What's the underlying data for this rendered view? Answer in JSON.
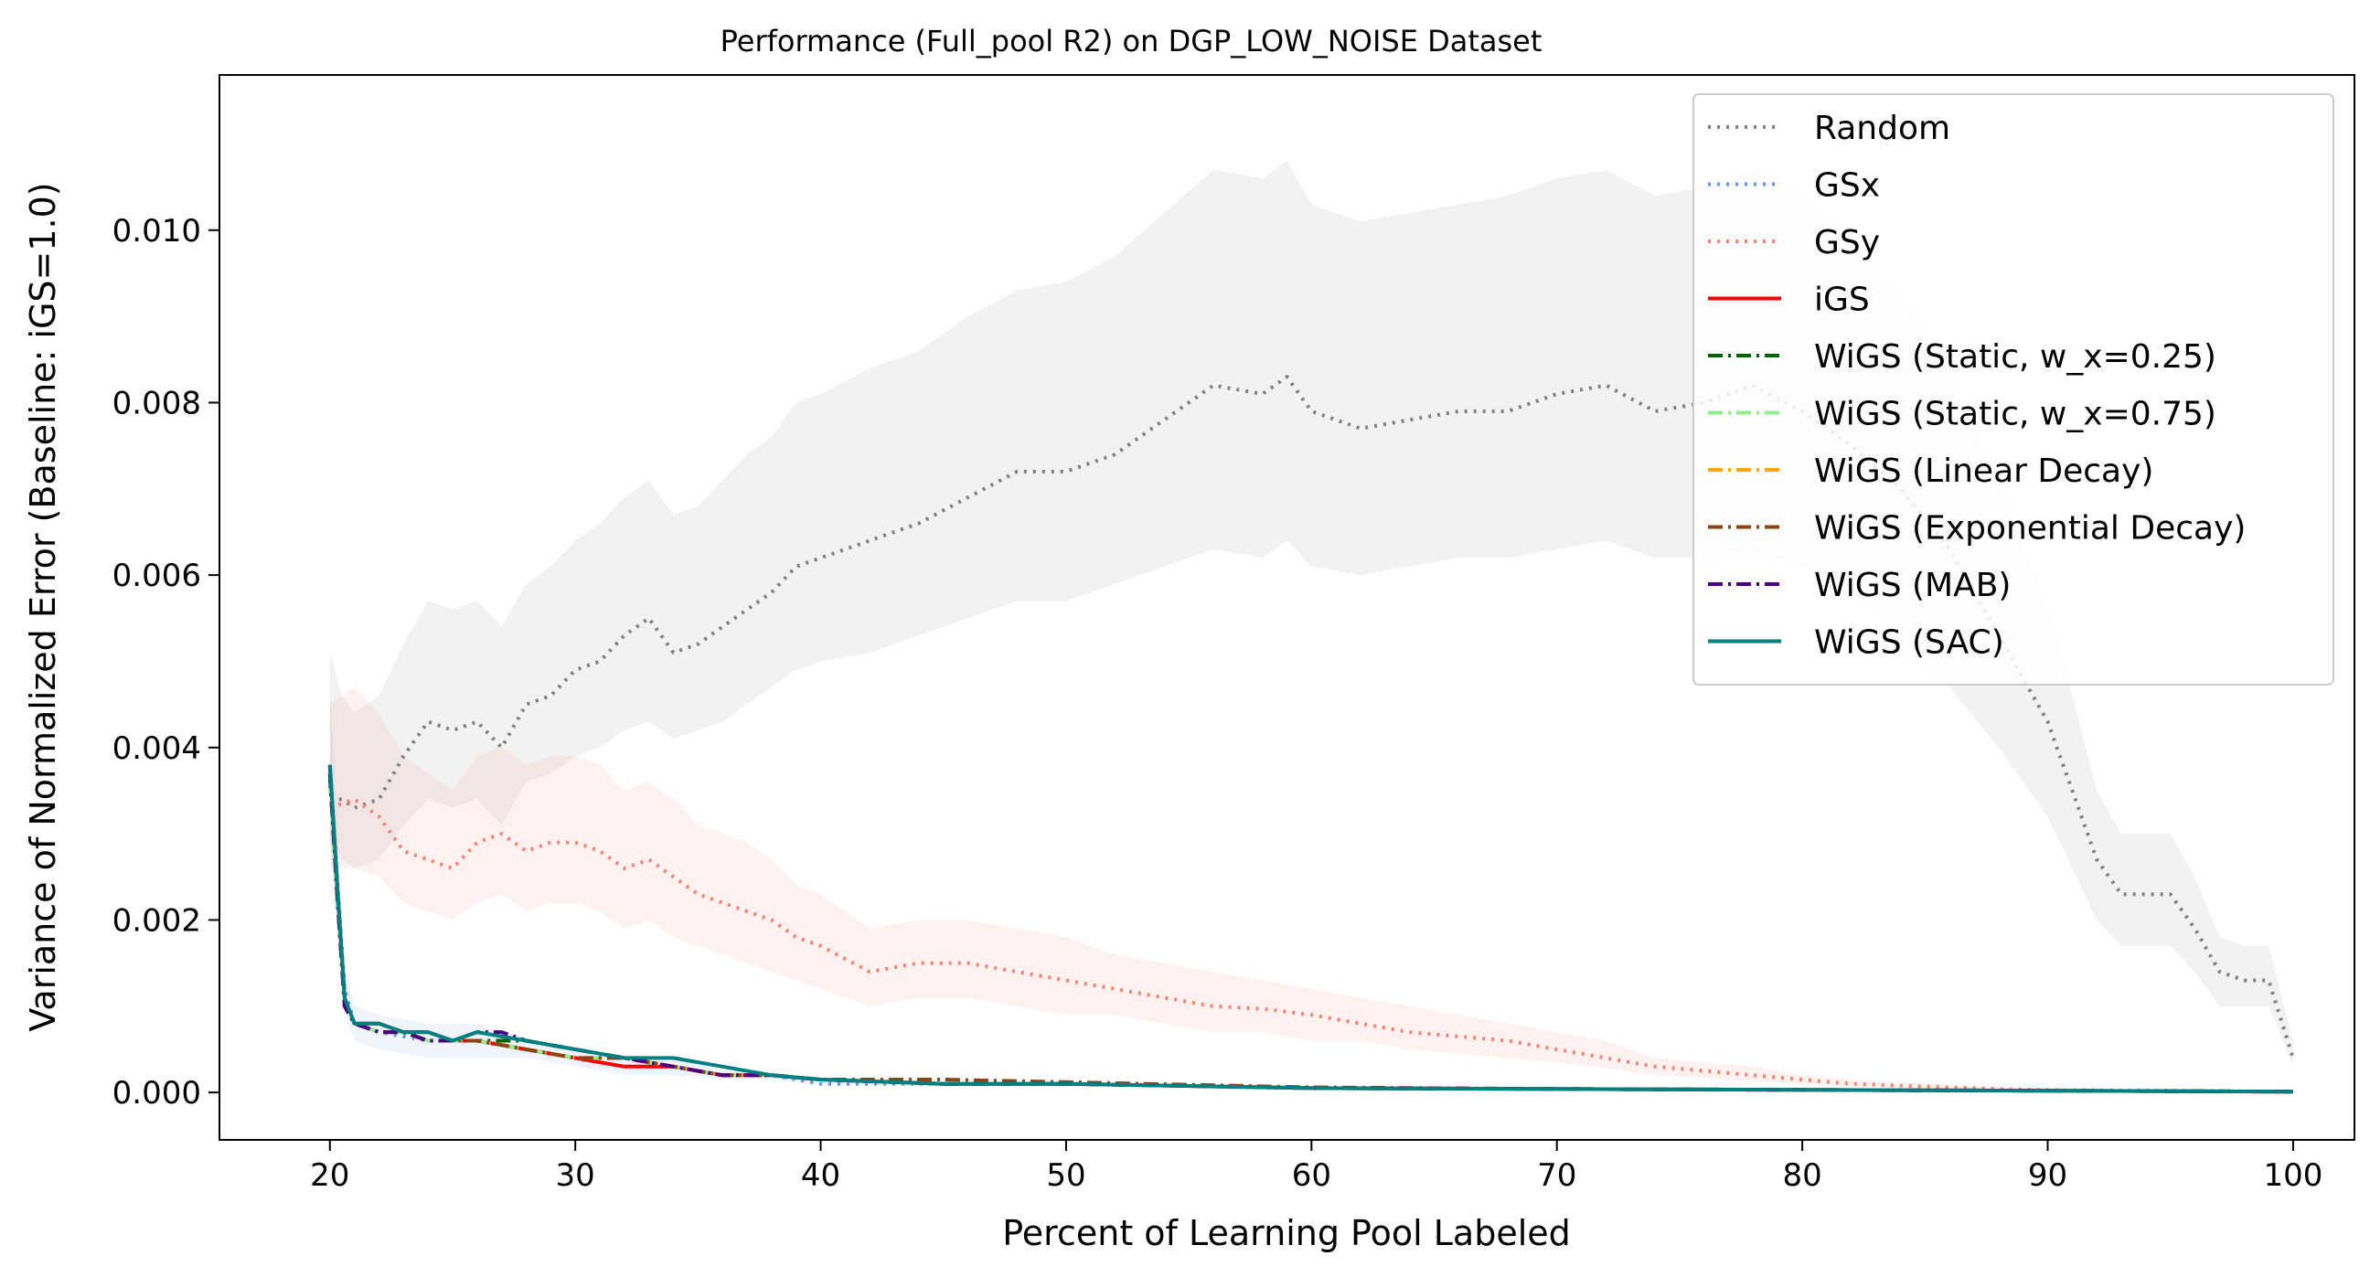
{
  "chart_data": {
    "type": "line",
    "title": "Performance (Full_pool R2) on DGP_LOW_NOISE Dataset",
    "xlabel": "Percent of Learning Pool Labeled",
    "ylabel": "Variance of Normalized Error (Baseline: iGS=1.0)",
    "xlim": [
      15.5,
      102.5
    ],
    "ylim": [
      -0.00055,
      0.0118
    ],
    "xticks": [
      20,
      30,
      40,
      50,
      60,
      70,
      80,
      90,
      100
    ],
    "xtick_labels": [
      "20",
      "30",
      "40",
      "50",
      "60",
      "70",
      "80",
      "90",
      "100"
    ],
    "yticks": [
      0.0,
      0.002,
      0.004,
      0.006,
      0.008,
      0.01
    ],
    "ytick_labels": [
      "0.000",
      "0.002",
      "0.004",
      "0.006",
      "0.008",
      "0.010"
    ],
    "grid": false,
    "legend_position": "top-right",
    "series": [
      {
        "name": "Random",
        "color": "#808080",
        "style": "dotted",
        "x": [
          20,
          20.5,
          21,
          22,
          23,
          24,
          25,
          26,
          27,
          28,
          29,
          30,
          31,
          32,
          33,
          34,
          35,
          36,
          37,
          38,
          39,
          40,
          42,
          44,
          46,
          48,
          50,
          52,
          54,
          56,
          58,
          59,
          60,
          62,
          64,
          66,
          68,
          70,
          72,
          74,
          76,
          78,
          80,
          82,
          84,
          86,
          88,
          90,
          91,
          92,
          93,
          94,
          95,
          96,
          97,
          98,
          99,
          100
        ],
        "y": [
          0.0034,
          0.0034,
          0.0033,
          0.0034,
          0.0039,
          0.0043,
          0.0042,
          0.0043,
          0.004,
          0.0045,
          0.0046,
          0.0049,
          0.005,
          0.0053,
          0.0055,
          0.0051,
          0.0052,
          0.0054,
          0.0056,
          0.0058,
          0.0061,
          0.0062,
          0.0064,
          0.0066,
          0.0069,
          0.0072,
          0.0072,
          0.0074,
          0.0078,
          0.0082,
          0.0081,
          0.0083,
          0.0079,
          0.0077,
          0.0078,
          0.0079,
          0.0079,
          0.0081,
          0.0082,
          0.0079,
          0.008,
          0.0082,
          0.0079,
          0.0075,
          0.007,
          0.0063,
          0.0053,
          0.0043,
          0.0035,
          0.0027,
          0.0023,
          0.0023,
          0.0023,
          0.0019,
          0.0014,
          0.0013,
          0.0013,
          0.0004
        ],
        "band_low": [
          0.0029,
          0.0027,
          0.0026,
          0.0027,
          0.0031,
          0.0034,
          0.0033,
          0.0034,
          0.0031,
          0.0036,
          0.0037,
          0.0039,
          0.004,
          0.0042,
          0.0043,
          0.0041,
          0.0042,
          0.0043,
          0.0045,
          0.0047,
          0.0049,
          0.005,
          0.0051,
          0.0053,
          0.0055,
          0.0057,
          0.0057,
          0.0059,
          0.0061,
          0.0063,
          0.0062,
          0.0064,
          0.0061,
          0.006,
          0.0061,
          0.0062,
          0.0062,
          0.0063,
          0.0064,
          0.0062,
          0.0062,
          0.0063,
          0.0061,
          0.0058,
          0.0053,
          0.0047,
          0.004,
          0.0032,
          0.0026,
          0.002,
          0.0017,
          0.0017,
          0.0017,
          0.0014,
          0.001,
          0.001,
          0.001,
          0.0003
        ],
        "band_high": [
          0.0051,
          0.0046,
          0.0044,
          0.0046,
          0.0052,
          0.0057,
          0.0056,
          0.0057,
          0.0054,
          0.0059,
          0.0061,
          0.0064,
          0.0066,
          0.0069,
          0.0071,
          0.0067,
          0.0068,
          0.0071,
          0.0074,
          0.0076,
          0.008,
          0.0081,
          0.0084,
          0.0086,
          0.009,
          0.0093,
          0.0094,
          0.0097,
          0.0102,
          0.0107,
          0.0106,
          0.0108,
          0.0103,
          0.0101,
          0.0102,
          0.0103,
          0.0104,
          0.0106,
          0.0107,
          0.0104,
          0.0105,
          0.0107,
          0.0104,
          0.0098,
          0.0092,
          0.0083,
          0.007,
          0.0056,
          0.0046,
          0.0035,
          0.003,
          0.003,
          0.003,
          0.0025,
          0.0018,
          0.0017,
          0.0017,
          0.0006
        ]
      },
      {
        "name": "GSx",
        "color": "#6495ed",
        "style": "dotted",
        "x": [
          20,
          20.3,
          20.6,
          21,
          22,
          24,
          26,
          28,
          30,
          32,
          34,
          36,
          38,
          40,
          45,
          50,
          60,
          70,
          80,
          90,
          100
        ],
        "y": [
          0.0038,
          0.0025,
          0.0012,
          0.0008,
          0.0007,
          0.0006,
          0.0006,
          0.0005,
          0.0004,
          0.0003,
          0.0003,
          0.0002,
          0.0002,
          0.0001,
          0.0001,
          0.0001,
          5e-05,
          4e-05,
          3e-05,
          2e-05,
          1e-05
        ],
        "band_low": [
          0.0029,
          0.0019,
          0.0009,
          0.0006,
          0.0005,
          0.0004,
          0.0004,
          0.0004,
          0.0003,
          0.0002,
          0.0002,
          0.00015,
          0.00015,
          8e-05,
          8e-05,
          8e-05,
          4e-05,
          3e-05,
          2e-05,
          1e-05,
          0.0
        ],
        "band_high": [
          0.0047,
          0.0031,
          0.0015,
          0.001,
          0.0009,
          0.0008,
          0.0008,
          0.0006,
          0.0005,
          0.0004,
          0.0004,
          0.00025,
          0.00025,
          0.00012,
          0.00012,
          0.00012,
          6e-05,
          5e-05,
          4e-05,
          3e-05,
          2e-05
        ]
      },
      {
        "name": "GSy",
        "color": "#fa8072",
        "style": "dotted",
        "x": [
          20,
          21,
          22,
          23,
          24,
          25,
          26,
          27,
          28,
          29,
          30,
          31,
          32,
          33,
          34,
          35,
          36,
          37,
          38,
          39,
          40,
          42,
          44,
          46,
          48,
          50,
          52,
          54,
          56,
          58,
          60,
          62,
          64,
          66,
          68,
          70,
          72,
          74,
          76,
          78,
          80,
          82,
          84,
          86,
          88,
          90,
          95,
          100
        ],
        "y": [
          0.0033,
          0.0034,
          0.0032,
          0.0028,
          0.0027,
          0.0026,
          0.0029,
          0.003,
          0.0028,
          0.0029,
          0.0029,
          0.0028,
          0.0026,
          0.0027,
          0.0025,
          0.0023,
          0.0022,
          0.0021,
          0.002,
          0.0018,
          0.0017,
          0.0014,
          0.0015,
          0.0015,
          0.0014,
          0.0013,
          0.0012,
          0.0011,
          0.001,
          0.00097,
          0.0009,
          0.0008,
          0.0007,
          0.00065,
          0.0006,
          0.0005,
          0.0004,
          0.0003,
          0.00025,
          0.0002,
          0.00015,
          0.0001,
          8e-05,
          6e-05,
          4e-05,
          3e-05,
          2e-05,
          1e-05
        ],
        "band_low": [
          0.0026,
          0.0026,
          0.0025,
          0.0022,
          0.0021,
          0.002,
          0.0022,
          0.0023,
          0.0021,
          0.0022,
          0.0022,
          0.0021,
          0.0019,
          0.002,
          0.0018,
          0.0017,
          0.0016,
          0.0015,
          0.0014,
          0.0013,
          0.0012,
          0.001,
          0.0011,
          0.0011,
          0.001,
          0.0009,
          0.0009,
          0.0008,
          0.0007,
          0.0007,
          0.0006,
          0.0006,
          0.0005,
          0.00045,
          0.0004,
          0.00035,
          0.00028,
          0.0002,
          0.00017,
          0.00013,
          0.0001,
          7e-05,
          5e-05,
          4e-05,
          3e-05,
          2e-05,
          1e-05,
          0.0
        ],
        "band_high": [
          0.0045,
          0.0047,
          0.0044,
          0.0039,
          0.0037,
          0.0035,
          0.0039,
          0.004,
          0.0038,
          0.0039,
          0.0039,
          0.0038,
          0.0035,
          0.0036,
          0.0034,
          0.0031,
          0.003,
          0.0029,
          0.0027,
          0.0024,
          0.0023,
          0.0019,
          0.002,
          0.002,
          0.0019,
          0.0018,
          0.0016,
          0.0015,
          0.0014,
          0.0013,
          0.0012,
          0.0011,
          0.001,
          0.0009,
          0.0008,
          0.0007,
          0.0006,
          0.0004,
          0.00035,
          0.0003,
          0.0002,
          0.00015,
          0.00012,
          9e-05,
          6e-05,
          4e-05,
          3e-05,
          2e-05
        ]
      },
      {
        "name": "iGS",
        "color": "#ff0000",
        "style": "solid",
        "x": [
          20,
          20.3,
          20.6,
          21,
          22,
          23,
          24,
          25,
          26,
          28,
          30,
          32,
          34,
          36,
          38,
          40,
          45,
          50,
          60,
          70,
          80,
          90,
          100
        ],
        "y": [
          0.0038,
          0.0024,
          0.0011,
          0.0008,
          0.0008,
          0.0007,
          0.0007,
          0.0006,
          0.0006,
          0.0005,
          0.0004,
          0.0003,
          0.0003,
          0.0002,
          0.0002,
          0.00015,
          0.0001,
          0.0001,
          5e-05,
          4e-05,
          3e-05,
          2e-05,
          1e-05
        ]
      },
      {
        "name": "WiGS (Static, w_x=0.25)",
        "color": "#006400",
        "style": "dashdot",
        "x": [
          20,
          20.3,
          20.6,
          21,
          22,
          23,
          24,
          25,
          26,
          28,
          30,
          32,
          34,
          36,
          38,
          40,
          45,
          50,
          60,
          70,
          80,
          90,
          100
        ],
        "y": [
          0.0037,
          0.0023,
          0.0011,
          0.0008,
          0.0007,
          0.0007,
          0.0007,
          0.0006,
          0.0006,
          0.0006,
          0.0005,
          0.0004,
          0.0003,
          0.0002,
          0.0002,
          0.00015,
          0.0001,
          0.0001,
          5e-05,
          4e-05,
          3e-05,
          2e-05,
          1e-05
        ]
      },
      {
        "name": "WiGS (Static, w_x=0.75)",
        "color": "#90ee90",
        "style": "dashdot",
        "x": [
          20,
          20.3,
          20.6,
          21,
          22,
          23,
          24,
          25,
          26,
          28,
          30,
          32,
          34,
          36,
          38,
          40,
          45,
          50,
          60,
          70,
          80,
          90,
          100
        ],
        "y": [
          0.0036,
          0.0022,
          0.0011,
          0.0008,
          0.0007,
          0.0007,
          0.0006,
          0.0006,
          0.0006,
          0.0005,
          0.0004,
          0.0004,
          0.0003,
          0.0002,
          0.0002,
          0.00015,
          0.0001,
          0.0001,
          5e-05,
          4e-05,
          3e-05,
          2e-05,
          1e-05
        ]
      },
      {
        "name": "WiGS (Linear Decay)",
        "color": "#ffa500",
        "style": "dashdot",
        "x": [
          20,
          20.3,
          20.6,
          21,
          22,
          23,
          24,
          25,
          26,
          28,
          30,
          32,
          34,
          36,
          38,
          40,
          45,
          50,
          60,
          70,
          80,
          90,
          100
        ],
        "y": [
          0.0037,
          0.0023,
          0.001,
          0.0008,
          0.0007,
          0.0007,
          0.0006,
          0.0006,
          0.0006,
          0.0005,
          0.0004,
          0.0004,
          0.0003,
          0.0002,
          0.0002,
          0.00015,
          0.0001,
          0.0001,
          5e-05,
          4e-05,
          3e-05,
          2e-05,
          1e-05
        ]
      },
      {
        "name": "WiGS (Exponential Decay)",
        "color": "#8b4513",
        "style": "dashdot",
        "x": [
          20,
          20.3,
          20.6,
          21,
          22,
          23,
          24,
          25,
          26,
          28,
          30,
          32,
          34,
          36,
          38,
          40,
          45,
          50,
          60,
          70,
          80,
          90,
          100
        ],
        "y": [
          0.0037,
          0.0023,
          0.001,
          0.0008,
          0.0007,
          0.0007,
          0.0006,
          0.0006,
          0.0006,
          0.0005,
          0.0004,
          0.0004,
          0.0003,
          0.0002,
          0.0002,
          0.00015,
          0.00015,
          0.00012,
          6e-05,
          4e-05,
          3e-05,
          2e-05,
          1e-05
        ]
      },
      {
        "name": "WiGS (MAB)",
        "color": "#4b0082",
        "style": "dashdot",
        "x": [
          20,
          20.3,
          20.6,
          21,
          22,
          23,
          24,
          25,
          26,
          27,
          28,
          30,
          32,
          34,
          36,
          38,
          40,
          45,
          50,
          60,
          70,
          80,
          90,
          100
        ],
        "y": [
          0.0037,
          0.0023,
          0.001,
          0.0008,
          0.0007,
          0.0007,
          0.0006,
          0.0006,
          0.0007,
          0.0007,
          0.0006,
          0.0005,
          0.0004,
          0.0003,
          0.0002,
          0.0002,
          0.00015,
          0.0001,
          0.0001,
          5e-05,
          4e-05,
          3e-05,
          2e-05,
          1e-05
        ]
      },
      {
        "name": "WiGS (SAC)",
        "color": "#008080",
        "style": "solid",
        "x": [
          20,
          20.3,
          20.6,
          21,
          22,
          23,
          24,
          25,
          26,
          28,
          30,
          32,
          34,
          36,
          38,
          40,
          45,
          50,
          60,
          70,
          80,
          90,
          100
        ],
        "y": [
          0.0038,
          0.0024,
          0.0011,
          0.0008,
          0.0008,
          0.0007,
          0.0007,
          0.0006,
          0.0007,
          0.0006,
          0.0005,
          0.0004,
          0.0004,
          0.0003,
          0.0002,
          0.00015,
          0.0001,
          0.0001,
          5e-05,
          4e-05,
          3e-05,
          2e-05,
          1e-05
        ]
      }
    ]
  }
}
